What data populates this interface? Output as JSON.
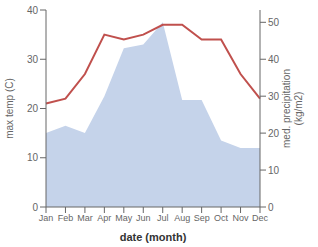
{
  "chart_data": {
    "type": "line",
    "xlabel": "date (month)",
    "ylabel": "max temp (C)",
    "y2label": "med. precipitation\n(kg/m2)",
    "categories": [
      "Jan",
      "Feb",
      "Mar",
      "Apr",
      "May",
      "Jun",
      "Jul",
      "Aug",
      "Sep",
      "Oct",
      "Nov",
      "Dec"
    ],
    "series": [
      {
        "type": "area",
        "axis": "y2",
        "color": "#c5d3ea",
        "values": [
          20,
          22,
          20,
          30,
          43,
          44,
          50,
          29,
          29,
          18,
          16,
          16
        ]
      },
      {
        "type": "line",
        "axis": "y",
        "color": "#c0504d",
        "values": [
          21,
          22,
          27,
          35,
          34,
          35,
          37,
          37,
          34,
          34,
          27,
          22
        ]
      }
    ],
    "ylim": [
      0,
      40
    ],
    "yticks": [
      0,
      10,
      20,
      30,
      40
    ],
    "y2lim": [
      0,
      53.33
    ],
    "y2ticks": [
      0,
      10,
      20,
      30,
      40,
      50
    ],
    "grid": false
  }
}
